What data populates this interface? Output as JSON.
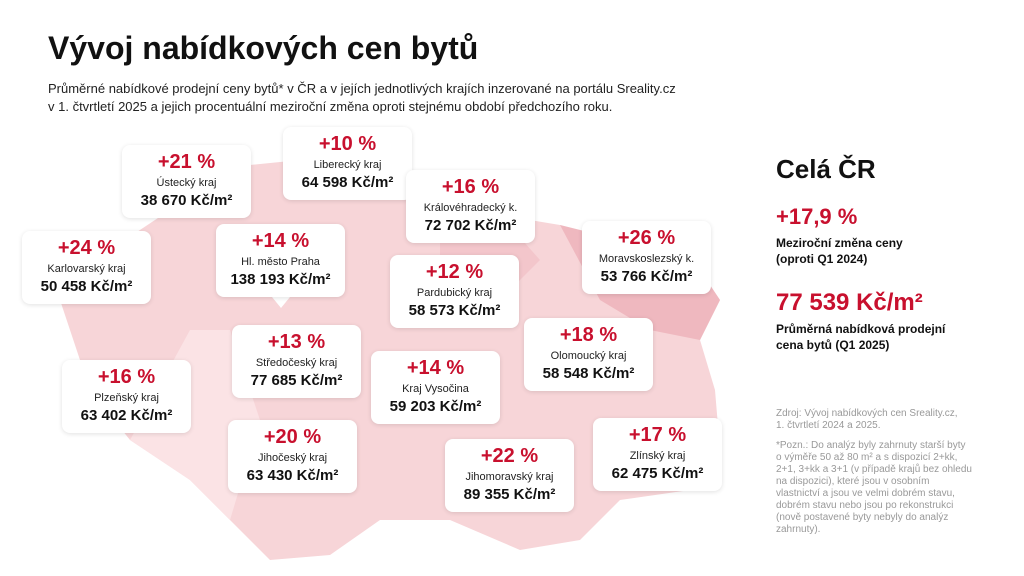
{
  "title": "Vývoj nabídkových cen bytů",
  "subtitle": [
    "Průměrné nabídkové prodejní ceny bytů* v ČR a v jejích jednotlivých krajích inzerované na portálu Sreality.cz",
    "v 1. čtvrtletí 2025 a jejich procentuální meziroční změna oproti stejnému období předchozího roku."
  ],
  "regions": [
    {
      "change": "+21 %",
      "name": "Ústecký kraj",
      "price": "38 670 Kč/m²"
    },
    {
      "change": "+10 %",
      "name": "Liberecký kraj",
      "price": "64 598 Kč/m²"
    },
    {
      "change": "+16 %",
      "name": "Královéhradecký k.",
      "price": "72 702 Kč/m²"
    },
    {
      "change": "+24 %",
      "name": "Karlovarský kraj",
      "price": "50 458 Kč/m²"
    },
    {
      "change": "+14 %",
      "name": "Hl. město Praha",
      "price": "138 193 Kč/m²"
    },
    {
      "change": "+26 %",
      "name": "Moravskoslezský k.",
      "price": "53 766 Kč/m²"
    },
    {
      "change": "+12 %",
      "name": "Pardubický kraj",
      "price": "58 573 Kč/m²"
    },
    {
      "change": "+13 %",
      "name": "Středočeský kraj",
      "price": "77 685 Kč/m²"
    },
    {
      "change": "+18 %",
      "name": "Olomoucký kraj",
      "price": "58 548 Kč/m²"
    },
    {
      "change": "+16 %",
      "name": "Plzeňský kraj",
      "price": "63 402 Kč/m²"
    },
    {
      "change": "+14 %",
      "name": "Kraj Vysočina",
      "price": "59 203 Kč/m²"
    },
    {
      "change": "+20 %",
      "name": "Jihočeský kraj",
      "price": "63 430 Kč/m²"
    },
    {
      "change": "+22 %",
      "name": "Jihomoravský kraj",
      "price": "89 355 Kč/m²"
    },
    {
      "change": "+17 %",
      "name": "Zlínský kraj",
      "price": "62 475 Kč/m²"
    }
  ],
  "summary": {
    "title": "Celá ČR",
    "change": "+17,9 %",
    "change_label": [
      "Meziroční změna ceny",
      "(oproti Q1 2024)"
    ],
    "price": "77 539 Kč/m²",
    "price_label": [
      "Průměrná nabídková prodejní",
      "cena bytů (Q1 2025)"
    ]
  },
  "source": [
    "Zdroj: Vývoj nabídkových cen Sreality.cz,",
    "1. čtvrtletí 2024 a 2025."
  ],
  "note": [
    "*Pozn.: Do analýz byly zahrnuty starší byty",
    "o výměře 50 až 80 m² a s dispozicí 2+kk,",
    "2+1, 3+kk a 3+1 (v případě krajů bez ohledu",
    "na dispozici), které jsou v osobním",
    "vlastnictví a jsou ve velmi dobrém stavu,",
    "dobrém stavu nebo jsou po rekonstrukci",
    "(nově postavené byty nebyly do analýz",
    "zahrnuty)."
  ]
}
